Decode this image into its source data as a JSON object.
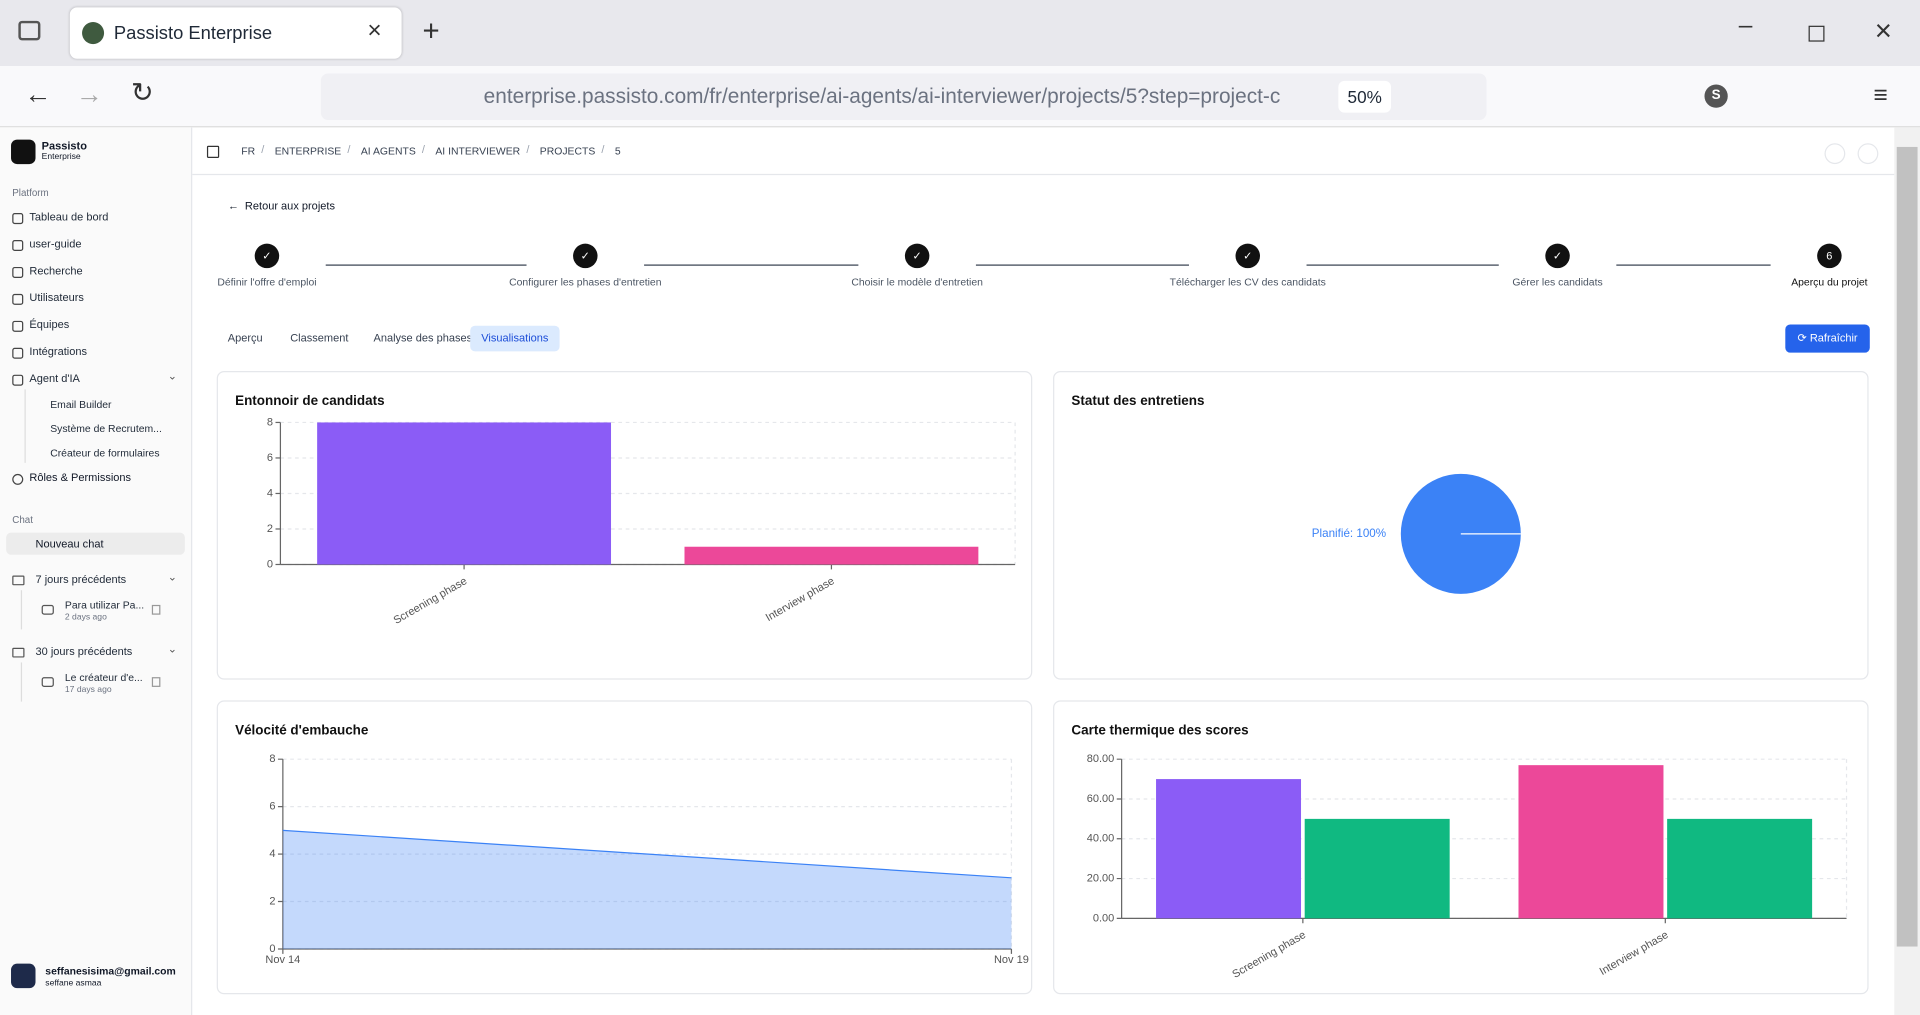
{
  "browser": {
    "tab_title": "Passisto Enterprise",
    "url": "enterprise.passisto.com/fr/enterprise/ai-agents/ai-interviewer/projects/5?step=project-c",
    "zoom": "50%",
    "profile": "S"
  },
  "sidebar": {
    "org_name": "Passisto",
    "org_plan": "Enterprise",
    "platform_label": "Platform",
    "nav": [
      "Tableau de bord",
      "user-guide",
      "Recherche",
      "Utilisateurs",
      "Équipes",
      "Intégrations",
      "Agent d'IA"
    ],
    "agent_items": [
      "Email Builder",
      "Système de Recrutem...",
      "Créateur de formulaires"
    ],
    "roles": "Rôles & Permissions",
    "chat_label": "Chat",
    "new_chat": "Nouveau chat",
    "groups": [
      {
        "title": "7 jours précédents",
        "items": [
          {
            "title": "Para utilizar Pa...",
            "time": "2 days ago"
          }
        ]
      },
      {
        "title": "30 jours précédents",
        "items": [
          {
            "title": "Le créateur d'e...",
            "time": "17 days ago"
          }
        ]
      }
    ],
    "user_email": "seffanesisima@gmail.com",
    "user_name": "seffane asmaa"
  },
  "breadcrumb": [
    "FR",
    "ENTERPRISE",
    "AI AGENTS",
    "AI INTERVIEWER",
    "PROJECTS",
    "5"
  ],
  "back_link": "Retour aux projets",
  "steps": [
    {
      "label": "Définir l'offre d'emploi",
      "status": "done"
    },
    {
      "label": "Configurer les phases d'entretien",
      "status": "done"
    },
    {
      "label": "Choisir le modèle d'entretien",
      "status": "done"
    },
    {
      "label": "Télécharger les CV des candidats",
      "status": "done"
    },
    {
      "label": "Gérer les candidats",
      "status": "done"
    },
    {
      "label": "Aperçu du projet",
      "status": "current",
      "number": 6
    }
  ],
  "tabs": [
    "Aperçu",
    "Classement",
    "Analyse des phases",
    "Visualisations"
  ],
  "active_tab": 3,
  "refresh_button": "Rafraîchir",
  "chart_data": [
    {
      "type": "bar",
      "title": "Entonnoir de candidats",
      "categories": [
        "Screening phase",
        "Interview phase"
      ],
      "values": [
        8,
        1
      ],
      "colors": [
        "#8b5cf6",
        "#ec4899"
      ],
      "ylim": [
        0,
        8
      ],
      "yticks": [
        0,
        2,
        4,
        6,
        8
      ],
      "grid": true
    },
    {
      "type": "pie",
      "title": "Statut des entretiens",
      "categories": [
        "Planifié"
      ],
      "values": [
        100
      ],
      "value_labels": [
        "Planifié: 100%"
      ],
      "colors": [
        "#3b82f6"
      ]
    },
    {
      "type": "area",
      "title": "Vélocité d'embauche",
      "x": [
        "Nov 14",
        "Nov 19"
      ],
      "values": [
        5,
        3
      ],
      "color": "#3b82f6",
      "ylim": [
        0,
        8
      ],
      "yticks": [
        0,
        2,
        4,
        6,
        8
      ],
      "grid": true
    },
    {
      "type": "bar",
      "title": "Carte thermique des scores",
      "categories": [
        "Screening phase",
        "Interview phase"
      ],
      "series": [
        {
          "colors": [
            "#8b5cf6",
            "#ec4899"
          ],
          "values": [
            70,
            77
          ]
        },
        {
          "color": "#10b981",
          "values": [
            50,
            50
          ]
        }
      ],
      "ylim": [
        0,
        80
      ],
      "yticks": [
        {
          "value": 0,
          "label": "0.00"
        },
        {
          "value": 20,
          "label": "20.00"
        },
        {
          "value": 40,
          "label": "40.00"
        },
        {
          "value": 60,
          "label": "60.00"
        },
        {
          "value": 80,
          "label": "80.00"
        }
      ],
      "grid": true
    }
  ]
}
